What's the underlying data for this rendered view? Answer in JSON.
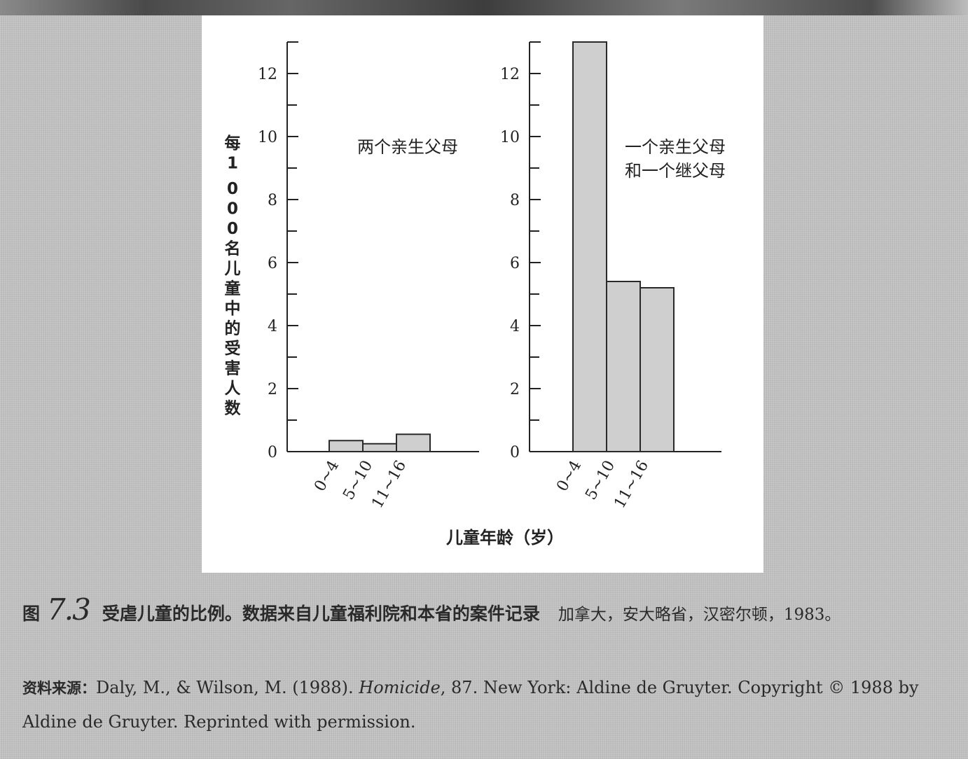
{
  "chart_data": [
    {
      "type": "bar",
      "label": "两个亲生父母",
      "categories": [
        "0~4",
        "5~10",
        "11~16"
      ],
      "values": [
        0.35,
        0.25,
        0.55
      ],
      "ylim": [
        0,
        13
      ],
      "yticks": [
        0,
        2,
        4,
        6,
        8,
        10,
        12
      ],
      "ylabel": "每1 000名儿童中的受害人数"
    },
    {
      "type": "bar",
      "label_lines": [
        "一个亲生父母",
        "和一个继父母"
      ],
      "categories": [
        "0~4",
        "5~10",
        "11~16"
      ],
      "values": [
        13.0,
        5.4,
        5.2
      ],
      "ylim": [
        0,
        13
      ],
      "yticks": [
        0,
        2,
        4,
        6,
        8,
        10,
        12
      ]
    }
  ],
  "xlabel": "儿童年龄（岁）",
  "colors": {
    "bar_fill": "#cfcfcf",
    "bar_stroke": "#2a2a2a",
    "axis": "#222222"
  },
  "caption": {
    "label": "图",
    "number": "7.3",
    "title": "受虐儿童的比例。数据来自儿童福利院和本省的案件记录",
    "place": "加拿大，安大略省，汉密尔顿，1983。"
  },
  "source": {
    "label": "资料来源：",
    "pre": "Daly, M., & Wilson, M. (1988). ",
    "title": "Homicide",
    "post": ", 87. New York: Aldine de Gruyter. Copyright © 1988 by Aldine de Gruyter. Reprinted with permission."
  }
}
